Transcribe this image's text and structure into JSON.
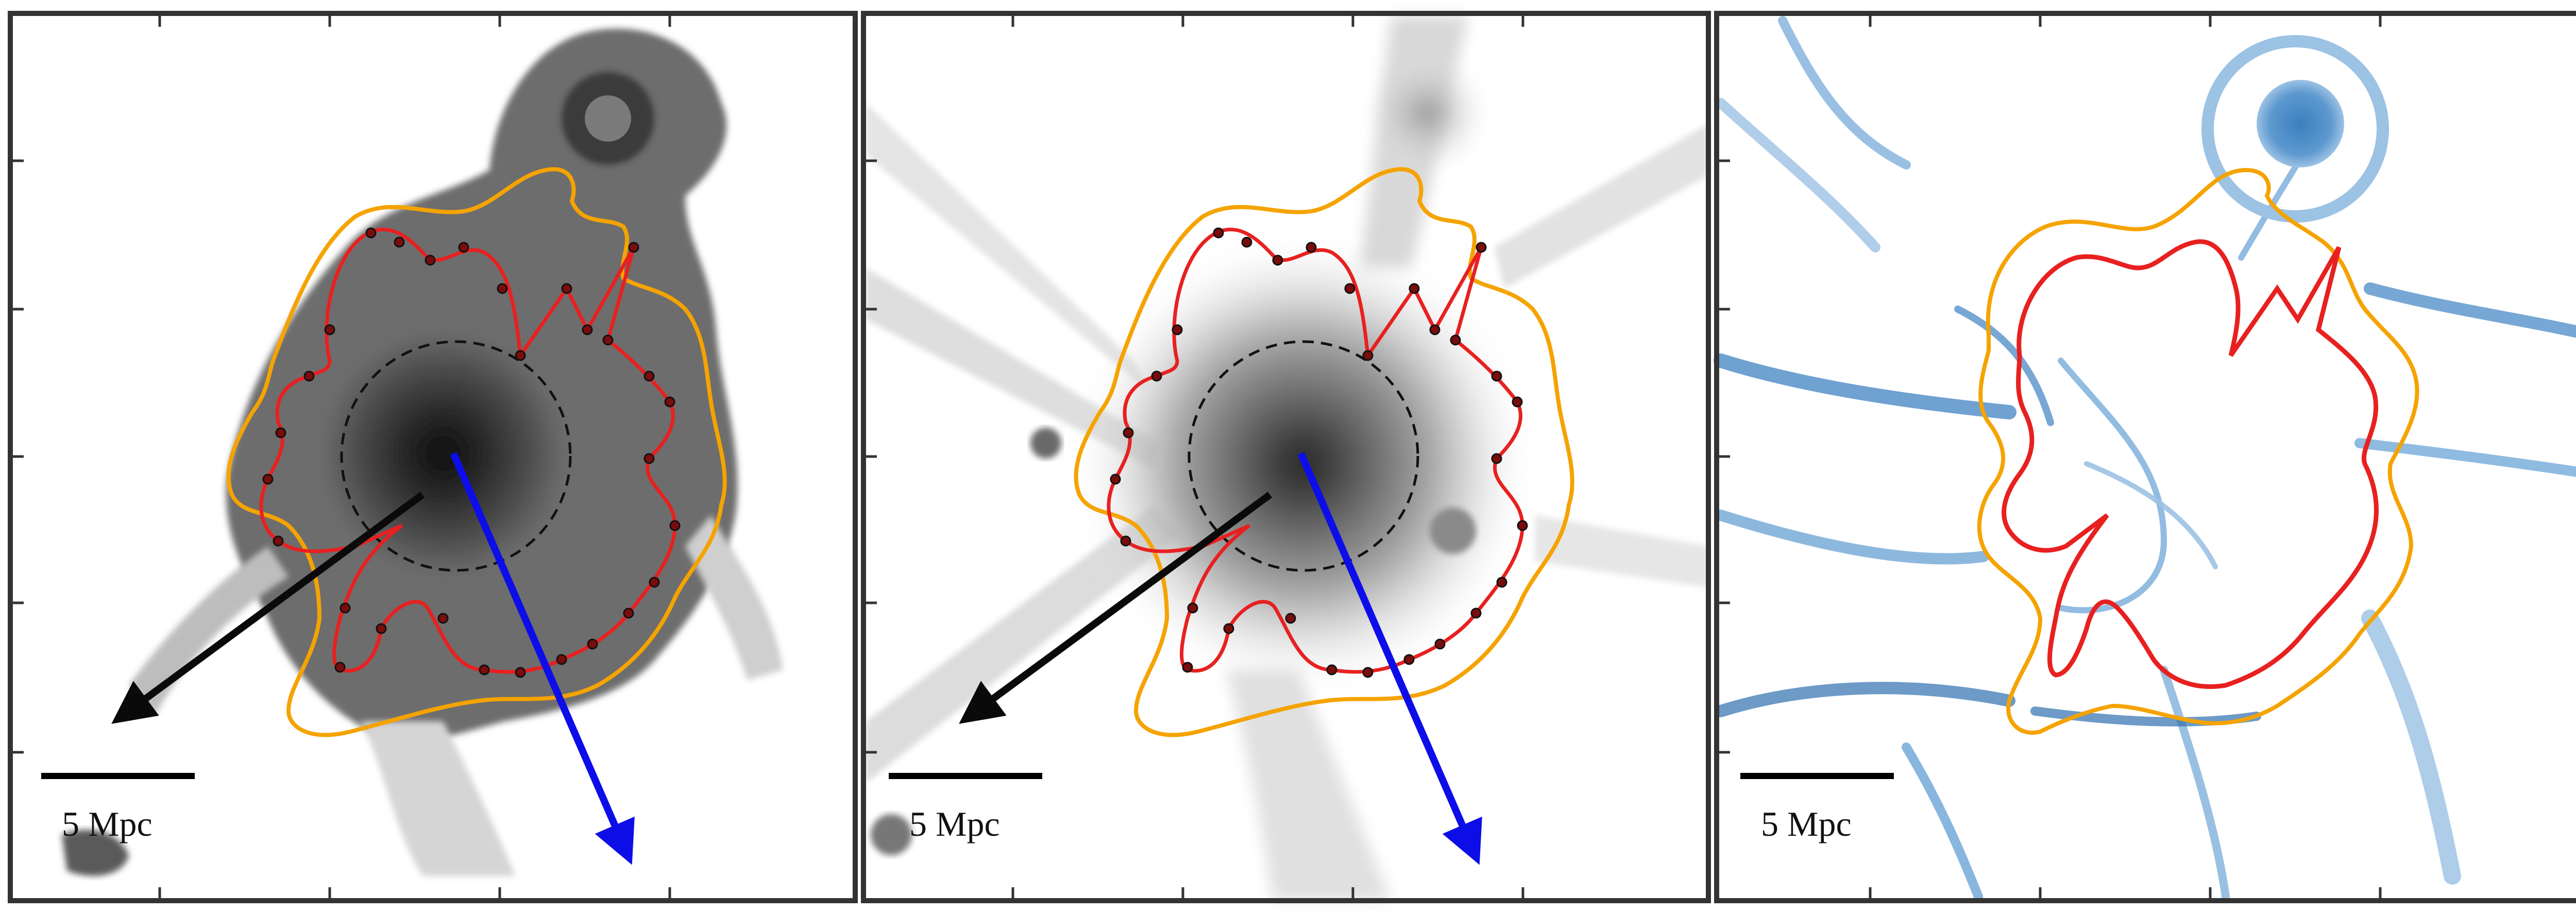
{
  "figure": {
    "panels": [
      {
        "id": "gas-density",
        "scale_bar_label": "5 Mpc",
        "colormap": "greyscale",
        "background": "#ffffff",
        "show_dashed_circle": true,
        "show_arrows": true,
        "show_sample_points": true
      },
      {
        "id": "dark-matter-density",
        "scale_bar_label": "5 Mpc",
        "colormap": "greyscale",
        "background": "#ffffff",
        "show_dashed_circle": true,
        "show_arrows": true,
        "show_sample_points": true
      },
      {
        "id": "shock-map",
        "scale_bar_label": "5 Mpc",
        "colormap": "blues",
        "background": "#ffffff",
        "show_dashed_circle": false,
        "show_arrows": false,
        "show_sample_points": false
      }
    ],
    "colors": {
      "inner_contour": "#e82020",
      "outer_contour": "#f5a300",
      "arrow_primary": "#0d0de8",
      "arrow_secondary": "#0a0a0a",
      "frame": "#333333",
      "scale_bar": "#000000",
      "greyscale_dark": "#1a1a1a",
      "blue_dark": "#1f5f9e",
      "blue_light": "#bcd6ee"
    }
  }
}
